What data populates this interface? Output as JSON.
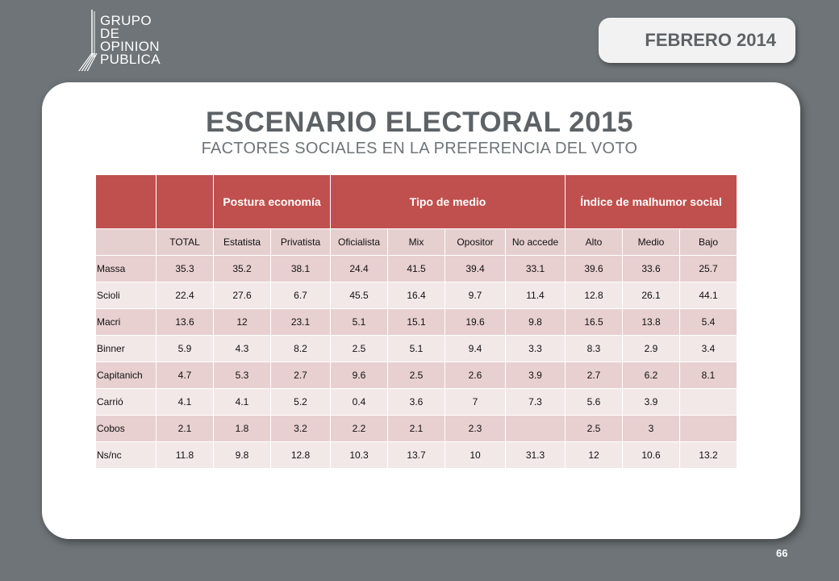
{
  "logo": {
    "lines": [
      "GRUPO",
      "DE",
      "OPINION",
      "PUBLICA"
    ]
  },
  "date_badge": "FEBRERO 2014",
  "title": "ESCENARIO ELECTORAL 2015",
  "subtitle": "FACTORES SOCIALES EN LA PREFERENCIA DEL VOTO",
  "table": {
    "groups": [
      "Postura economía",
      "Tipo de medio",
      "Índice de malhumor social"
    ],
    "columns": [
      "TOTAL",
      "Estatista",
      "Privatista",
      "Oficialista",
      "Mix",
      "Opositor",
      "No accede",
      "Alto",
      "Medio",
      "Bajo"
    ],
    "rows": [
      {
        "label": "Massa",
        "values": [
          "35.3",
          "35.2",
          "38.1",
          "24.4",
          "41.5",
          "39.4",
          "33.1",
          "39.6",
          "33.6",
          "25.7"
        ]
      },
      {
        "label": "Scioli",
        "values": [
          "22.4",
          "27.6",
          "6.7",
          "45.5",
          "16.4",
          "9.7",
          "11.4",
          "12.8",
          "26.1",
          "44.1"
        ]
      },
      {
        "label": "Macri",
        "values": [
          "13.6",
          "12",
          "23.1",
          "5.1",
          "15.1",
          "19.6",
          "9.8",
          "16.5",
          "13.8",
          "5.4"
        ]
      },
      {
        "label": "Binner",
        "values": [
          "5.9",
          "4.3",
          "8.2",
          "2.5",
          "5.1",
          "9.4",
          "3.3",
          "8.3",
          "2.9",
          "3.4"
        ]
      },
      {
        "label": "Capitanich",
        "values": [
          "4.7",
          "5.3",
          "2.7",
          "9.6",
          "2.5",
          "2.6",
          "3.9",
          "2.7",
          "6.2",
          "8.1"
        ]
      },
      {
        "label": "Carrió",
        "values": [
          "4.1",
          "4.1",
          "5.2",
          "0.4",
          "3.6",
          "7",
          "7.3",
          "5.6",
          "3.9",
          ""
        ]
      },
      {
        "label": "Cobos",
        "values": [
          "2.1",
          "1.8",
          "3.2",
          "2.2",
          "2.1",
          "2.3",
          "",
          "2.5",
          "3",
          ""
        ]
      },
      {
        "label": "Ns/nc",
        "values": [
          "11.8",
          "9.8",
          "12.8",
          "10.3",
          "13.7",
          "10",
          "31.3",
          "12",
          "10.6",
          "13.2"
        ]
      }
    ]
  },
  "page_number": "66"
}
